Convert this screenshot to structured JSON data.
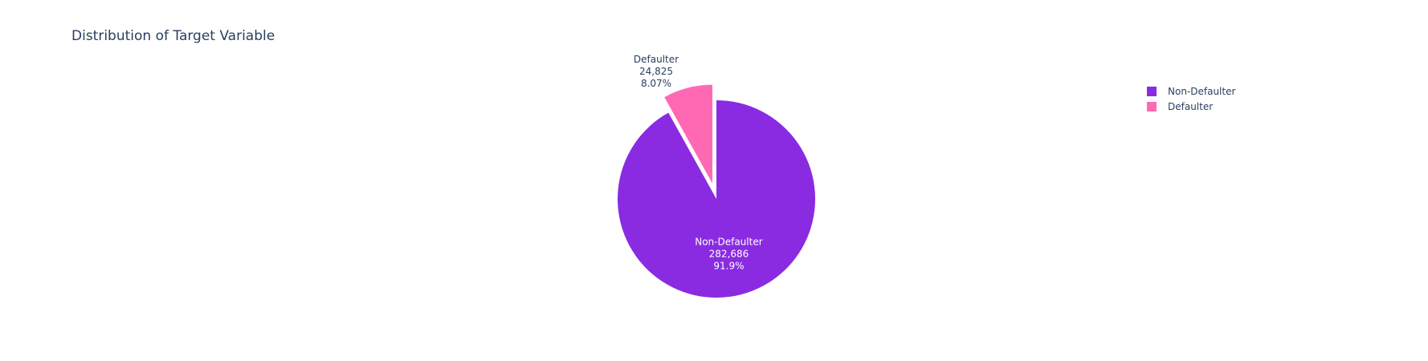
{
  "chart_data": {
    "type": "pie",
    "title": "Distribution of Target Variable",
    "legend_position": "top-right",
    "slices": [
      {
        "label": "Non-Defaulter",
        "value": 282686,
        "value_text": "282,686",
        "percent_text": "91.9%",
        "color": "#8a2be2",
        "label_color": "#ffffff",
        "pulled": false
      },
      {
        "label": "Defaulter",
        "value": 24825,
        "value_text": "24,825",
        "percent_text": "8.07%",
        "color": "#ff69b4",
        "label_color": "#2a3f5f",
        "pulled": true
      }
    ]
  }
}
